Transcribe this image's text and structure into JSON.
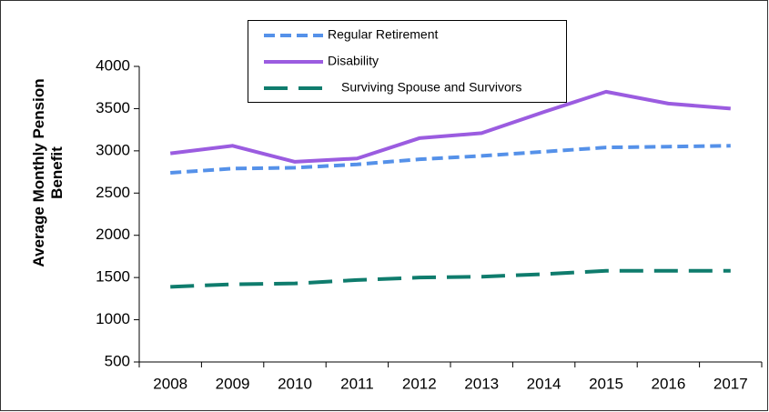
{
  "chart_data": {
    "type": "line",
    "ylabel": "Average Monthly Pension Benefit",
    "categories": [
      "2008",
      "2009",
      "2010",
      "2011",
      "2012",
      "2013",
      "2014",
      "2015",
      "2016",
      "2017"
    ],
    "series": [
      {
        "name": "Regular Retirement",
        "color": "#5591e9",
        "values": [
          2740,
          2790,
          2800,
          2840,
          2900,
          2940,
          2990,
          3040,
          3050,
          3060
        ]
      },
      {
        "name": "Disability",
        "color": "#9b5ce0",
        "values": [
          2970,
          3060,
          2870,
          2910,
          3150,
          3210,
          3460,
          3700,
          3560,
          3500
        ]
      },
      {
        "name": "Surviving Spouse and Survivors",
        "color": "#0f7c6d",
        "values": [
          1390,
          1420,
          1430,
          1470,
          1500,
          1510,
          1540,
          1580,
          1580,
          1580
        ]
      }
    ],
    "ylim": [
      500,
      4000
    ],
    "yticks": [
      500,
      1000,
      1500,
      2000,
      2500,
      3000,
      3500,
      4000
    ]
  }
}
